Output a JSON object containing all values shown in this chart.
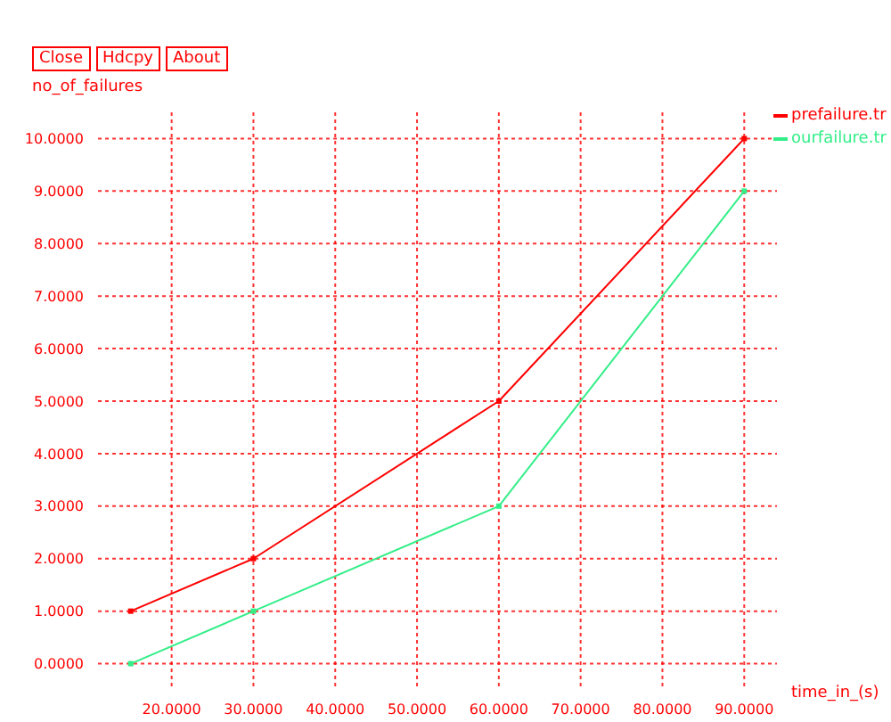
{
  "chart_data": {
    "type": "line",
    "xlabel": "time_in_(s)",
    "ylabel": "no_of_failures",
    "annotations": [
      "Close",
      "Hdcpy",
      "About"
    ],
    "x": [
      15,
      30,
      60,
      90
    ],
    "series": [
      {
        "name": "prefailure.tr",
        "color": "#ff0000",
        "values": [
          1,
          2,
          5,
          10
        ]
      },
      {
        "name": "ourfailure.tr",
        "color": "#33ee88",
        "values": [
          0,
          1,
          3,
          9
        ]
      }
    ],
    "xlim": [
      11,
      94
    ],
    "xticks": [
      {
        "value": 20,
        "label": "20.0000"
      },
      {
        "value": 30,
        "label": "30.0000"
      },
      {
        "value": 40,
        "label": "40.0000"
      },
      {
        "value": 50,
        "label": "50.0000"
      },
      {
        "value": 60,
        "label": "60.0000"
      },
      {
        "value": 70,
        "label": "70.0000"
      },
      {
        "value": 80,
        "label": "80.0000"
      },
      {
        "value": 90,
        "label": "90.0000"
      }
    ],
    "ylim": [
      -0.5,
      10.5
    ],
    "yticks": [
      {
        "value": 0,
        "label": "0.0000"
      },
      {
        "value": 1,
        "label": "1.0000"
      },
      {
        "value": 2,
        "label": "2.0000"
      },
      {
        "value": 3,
        "label": "3.0000"
      },
      {
        "value": 4,
        "label": "4.0000"
      },
      {
        "value": 5,
        "label": "5.0000"
      },
      {
        "value": 6,
        "label": "6.0000"
      },
      {
        "value": 7,
        "label": "7.0000"
      },
      {
        "value": 8,
        "label": "8.0000"
      },
      {
        "value": 9,
        "label": "9.0000"
      },
      {
        "value": 10,
        "label": "10.0000"
      }
    ],
    "grid": true,
    "legend": "top right",
    "marker": "square",
    "line_style": "solid"
  }
}
